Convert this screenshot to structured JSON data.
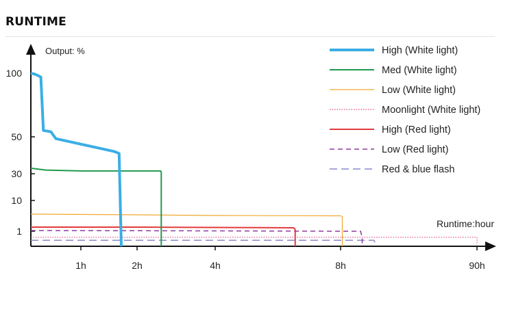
{
  "section_title": "RUNTIME",
  "chart_data": {
    "type": "line",
    "ylabel": "Output: %",
    "xlabel": "Runtime:hour",
    "x_ticks": [
      "1h",
      "2h",
      "4h",
      "8h",
      "90h"
    ],
    "y_ticks": [
      "100",
      "50",
      "30",
      "10",
      "1"
    ],
    "grid": false,
    "legend_position": "top-right",
    "series": [
      {
        "name": "High (White light)",
        "color": "#3aaee5",
        "dash": "solid",
        "width": 4,
        "points": [
          [
            0,
            100
          ],
          [
            0.1,
            99
          ],
          [
            0.2,
            97
          ],
          [
            0.25,
            55
          ],
          [
            0.4,
            54
          ],
          [
            0.5,
            49
          ],
          [
            1.6,
            42
          ],
          [
            1.68,
            41
          ],
          [
            1.72,
            0
          ]
        ]
      },
      {
        "name": "Med (White light)",
        "color": "#1f9a4c",
        "dash": "solid",
        "width": 2,
        "points": [
          [
            0,
            33
          ],
          [
            0.3,
            32
          ],
          [
            1,
            31.5
          ],
          [
            2,
            31.5
          ],
          [
            2.6,
            31.5
          ],
          [
            2.62,
            31
          ],
          [
            2.62,
            0
          ]
        ]
      },
      {
        "name": "Low (White light)",
        "color": "#f0a830",
        "dash": "solid",
        "width": 1.2,
        "points": [
          [
            0,
            6
          ],
          [
            2,
            5.8
          ],
          [
            4,
            5.6
          ],
          [
            8,
            5.5
          ],
          [
            9,
            5.3
          ],
          [
            9.05,
            0
          ]
        ]
      },
      {
        "name": "Moonlight (White light)",
        "color": "#e0457e",
        "dash": "dot",
        "width": 1.2,
        "points": [
          [
            0,
            0.6
          ],
          [
            4,
            0.6
          ],
          [
            8,
            0.6
          ],
          [
            90,
            0.6
          ],
          [
            90,
            0.1
          ]
        ]
      },
      {
        "name": "High (Red light)",
        "color": "#e23a3a",
        "dash": "solid",
        "width": 2,
        "points": [
          [
            0,
            2.2
          ],
          [
            2,
            2.2
          ],
          [
            4,
            2.1
          ],
          [
            6.5,
            2.0
          ],
          [
            6.55,
            1.5
          ],
          [
            6.55,
            0
          ]
        ]
      },
      {
        "name": "Low (Red light)",
        "color": "#8c3a9a",
        "dash": "dash",
        "width": 1.5,
        "points": [
          [
            0,
            1.2
          ],
          [
            4,
            1.1
          ],
          [
            8,
            1.0
          ],
          [
            20,
            1.0
          ],
          [
            21,
            0.6
          ],
          [
            21,
            0
          ]
        ]
      },
      {
        "name": "Red & blue flash",
        "color": "#8888cc",
        "dash": "longdash",
        "width": 1.5,
        "points": [
          [
            0,
            0.4
          ],
          [
            8,
            0.4
          ],
          [
            28,
            0.4
          ],
          [
            29,
            0.2
          ],
          [
            29,
            0
          ]
        ]
      }
    ]
  }
}
